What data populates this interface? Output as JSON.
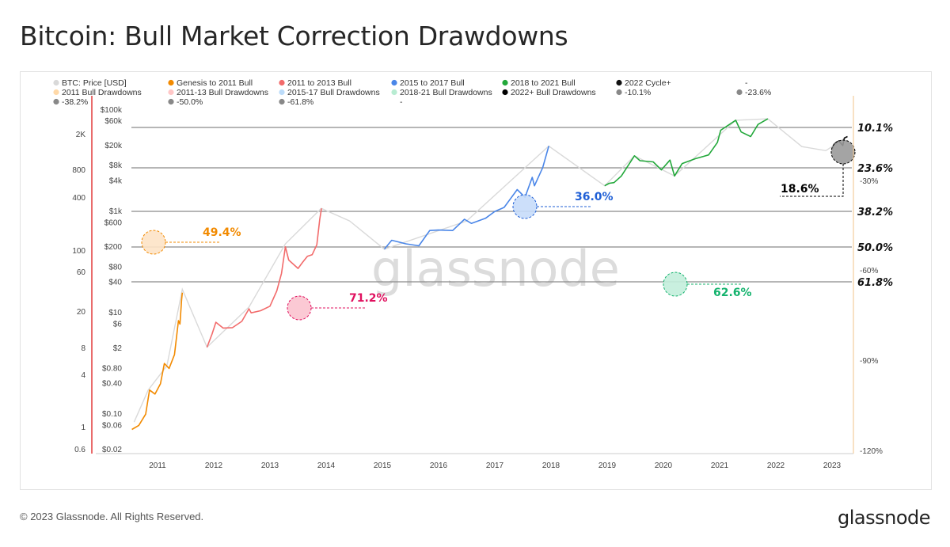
{
  "title": "Bitcoin: Bull Market Correction Drawdowns",
  "footer": "© 2023 Glassnode. All Rights Reserved.",
  "brand": "glassnode",
  "watermark": "glassnode",
  "colors": {
    "btc_price": "#d9d9d9",
    "genesis": "#f28a00",
    "bull_2011_2013": "#f26b6b",
    "bull_2015_2017": "#4a86e8",
    "bull_2018_2021": "#22a83a",
    "cycle_2022": "#111111",
    "dd_2011": "#ffc98a",
    "dd_2011_13": "#ff7f7f",
    "dd_2015_17": "#4aa3f5",
    "dd_2018_21": "#34d17f",
    "dd_2022": "#000000"
  },
  "legend": [
    {
      "label": "BTC: Price [USD]",
      "color": "#d9d9d9"
    },
    {
      "label": "Genesis to 2011 Bull",
      "color": "#f28a00"
    },
    {
      "label": "2011 to 2013 Bull",
      "color": "#f26b6b"
    },
    {
      "label": "2015 to 2017 Bull",
      "color": "#4a86e8"
    },
    {
      "label": "2018 to 2021 Bull",
      "color": "#22a83a"
    },
    {
      "label": "2022 Cycle+",
      "color": "#111111"
    },
    {
      "label": "-",
      "color": ""
    },
    {
      "label": "2011 Bull Drawdowns",
      "color": "#ffd9a8"
    },
    {
      "label": "2011-13 Bull Drawdowns",
      "color": "#ffc7c7"
    },
    {
      "label": "2015-17 Bull Drawdowns",
      "color": "#bcdcfa"
    },
    {
      "label": "2018-21 Bull Drawdowns",
      "color": "#b8ecd2"
    },
    {
      "label": "2022+ Bull Drawdowns",
      "color": "#000000"
    },
    {
      "label": "-10.1%",
      "color": "#888888"
    },
    {
      "label": "-23.6%",
      "color": "#888888"
    },
    {
      "label": "-38.2%",
      "color": "#888888"
    },
    {
      "label": "-50.0%",
      "color": "#888888"
    },
    {
      "label": "-61.8%",
      "color": "#888888"
    },
    {
      "label": "-",
      "color": ""
    }
  ],
  "chart_data": {
    "type": "area",
    "x_ticks": [
      "2011",
      "2012",
      "2013",
      "2014",
      "2015",
      "2016",
      "2017",
      "2018",
      "2019",
      "2020",
      "2021",
      "2022",
      "2023"
    ],
    "y_ticks_outer": [
      "2K",
      "800",
      "400",
      "100",
      "60",
      "20",
      "8",
      "4",
      "1",
      "0.6"
    ],
    "y_ticks_inner": [
      "$100k",
      "$60k",
      "$20k",
      "$8k",
      "$4k",
      "$1k",
      "$600",
      "$200",
      "$80",
      "$40",
      "$10",
      "$6",
      "$2",
      "$0.80",
      "$0.40",
      "$0.10",
      "$0.06",
      "$0.02"
    ],
    "y_ticks_right": [
      "-30%",
      "-60%",
      "-90%",
      "-120%"
    ],
    "levels": [
      {
        "label": "10.1%",
        "value": -10.1
      },
      {
        "label": "23.6%",
        "value": -23.6
      },
      {
        "label": "38.2%",
        "value": -38.2
      },
      {
        "label": "50.0%",
        "value": -50.0
      },
      {
        "label": "61.8%",
        "value": -61.8
      }
    ],
    "max_drawdowns": [
      {
        "cycle": "2011 Bull",
        "label": "49.4%",
        "value": -49.4,
        "date": "2011-03",
        "color": "#f28a00"
      },
      {
        "cycle": "2011-13 Bull",
        "label": "71.2%",
        "value": -71.2,
        "date": "2013-07",
        "color": "#e0115f"
      },
      {
        "cycle": "2015-17 Bull",
        "label": "36.0%",
        "value": -36.0,
        "date": "2017-07",
        "color": "#1f5fd6"
      },
      {
        "cycle": "2018-21 Bull",
        "label": "62.6%",
        "value": -62.6,
        "date": "2020-03",
        "color": "#15b36e"
      },
      {
        "cycle": "2022+ Bull",
        "label": "18.6%",
        "value": -18.6,
        "date": "2023-03",
        "color": "#000000"
      }
    ],
    "drawdown_ranges": [
      {
        "series": "2011 Bull Drawdowns",
        "start": "2010-07",
        "end": "2011-06"
      },
      {
        "series": "2011-13 Bull Drawdowns",
        "start": "2011-11",
        "end": "2013-12"
      },
      {
        "series": "2015-17 Bull Drawdowns",
        "start": "2015-01",
        "end": "2017-12"
      },
      {
        "series": "2018-21 Bull Drawdowns",
        "start": "2018-12",
        "end": "2021-11"
      },
      {
        "series": "2022+ Bull Drawdowns",
        "start": "2022-12",
        "end": "2023-04"
      }
    ],
    "price_series": [
      {
        "name": "Genesis to 2011 Bull",
        "color": "#f28a00",
        "points": [
          [
            "2010-07-17",
            0.05
          ],
          [
            "2010-09-01",
            0.06
          ],
          [
            "2010-10-15",
            0.1
          ],
          [
            "2010-11-10",
            0.3
          ],
          [
            "2010-12-15",
            0.25
          ],
          [
            "2011-01-20",
            0.4
          ],
          [
            "2011-02-15",
            1.0
          ],
          [
            "2011-03-15",
            0.8
          ],
          [
            "2011-04-20",
            1.5
          ],
          [
            "2011-05-15",
            7
          ],
          [
            "2011-05-25",
            6
          ],
          [
            "2011-06-05",
            18
          ],
          [
            "2011-06-10",
            25
          ]
        ]
      },
      {
        "name": "2011 to 2013 Bull",
        "color": "#f26b6b",
        "points": [
          [
            "2011-11-18",
            2.1
          ],
          [
            "2011-12-20",
            3.8
          ],
          [
            "2012-01-15",
            6.5
          ],
          [
            "2012-03-01",
            5.0
          ],
          [
            "2012-05-01",
            5.1
          ],
          [
            "2012-07-01",
            6.8
          ],
          [
            "2012-08-17",
            12
          ],
          [
            "2012-09-01",
            10
          ],
          [
            "2012-11-01",
            11
          ],
          [
            "2013-01-01",
            13.5
          ],
          [
            "2013-02-15",
            27
          ],
          [
            "2013-03-15",
            60
          ],
          [
            "2013-04-10",
            200
          ],
          [
            "2013-05-01",
            110
          ],
          [
            "2013-07-01",
            75
          ],
          [
            "2013-08-01",
            100
          ],
          [
            "2013-09-01",
            130
          ],
          [
            "2013-10-01",
            140
          ],
          [
            "2013-11-01",
            220
          ],
          [
            "2013-11-20",
            700
          ],
          [
            "2013-12-01",
            1150
          ]
        ]
      },
      {
        "name": "2015 to 2017 Bull",
        "color": "#4a86e8",
        "points": [
          [
            "2015-01-14",
            180
          ],
          [
            "2015-03-01",
            270
          ],
          [
            "2015-06-01",
            230
          ],
          [
            "2015-08-25",
            210
          ],
          [
            "2015-11-04",
            420
          ],
          [
            "2016-01-01",
            430
          ],
          [
            "2016-04-01",
            420
          ],
          [
            "2016-06-17",
            700
          ],
          [
            "2016-08-01",
            580
          ],
          [
            "2016-11-01",
            730
          ],
          [
            "2017-01-01",
            1000
          ],
          [
            "2017-03-01",
            1200
          ],
          [
            "2017-05-25",
            2700
          ],
          [
            "2017-07-15",
            1900
          ],
          [
            "2017-09-01",
            4700
          ],
          [
            "2017-09-15",
            3200
          ],
          [
            "2017-11-08",
            7300
          ],
          [
            "2017-12-17",
            19500
          ]
        ]
      },
      {
        "name": "2018 to 2021 Bull",
        "color": "#22a83a",
        "points": [
          [
            "2018-12-15",
            3200
          ],
          [
            "2019-01-15",
            3600
          ],
          [
            "2019-02-15",
            3700
          ],
          [
            "2019-04-02",
            5000
          ],
          [
            "2019-06-26",
            12500
          ],
          [
            "2019-08-01",
            10000
          ],
          [
            "2019-10-26",
            9500
          ],
          [
            "2019-12-18",
            6600
          ],
          [
            "2020-02-13",
            10300
          ],
          [
            "2020-03-12",
            5000
          ],
          [
            "2020-05-01",
            8800
          ],
          [
            "2020-07-27",
            11000
          ],
          [
            "2020-10-21",
            13000
          ],
          [
            "2020-12-17",
            23000
          ],
          [
            "2021-01-08",
            40000
          ],
          [
            "2021-04-14",
            63000
          ],
          [
            "2021-05-19",
            37000
          ],
          [
            "2021-07-20",
            30000
          ],
          [
            "2021-09-07",
            52000
          ],
          [
            "2021-11-10",
            67000
          ]
        ]
      },
      {
        "name": "2022 Cycle+",
        "color": "#111111",
        "points": [
          [
            "2022-12-30",
            16500
          ],
          [
            "2023-01-14",
            21000
          ],
          [
            "2023-02-01",
            23500
          ],
          [
            "2023-02-15",
            24500
          ],
          [
            "2023-03-10",
            20000
          ],
          [
            "2023-03-20",
            28000
          ],
          [
            "2023-04-10",
            30000
          ]
        ]
      }
    ],
    "btc_price": [
      [
        "2010-08-01",
        0.07
      ],
      [
        "2010-11-01",
        0.3
      ],
      [
        "2011-03-01",
        0.9
      ],
      [
        "2011-06-10",
        29
      ],
      [
        "2011-11-18",
        2.1
      ],
      [
        "2012-08-17",
        13
      ],
      [
        "2013-04-10",
        230
      ],
      [
        "2013-11-30",
        1150
      ],
      [
        "2014-06-01",
        650
      ],
      [
        "2015-01-14",
        180
      ],
      [
        "2016-07-01",
        650
      ],
      [
        "2017-12-17",
        19500
      ],
      [
        "2018-12-15",
        3200
      ],
      [
        "2019-06-26",
        12500
      ],
      [
        "2020-03-12",
        5000
      ],
      [
        "2021-04-14",
        63000
      ],
      [
        "2021-11-10",
        67000
      ],
      [
        "2022-06-18",
        19000
      ],
      [
        "2022-11-21",
        15800
      ],
      [
        "2023-04-10",
        30000
      ]
    ],
    "legend_position": "top"
  }
}
